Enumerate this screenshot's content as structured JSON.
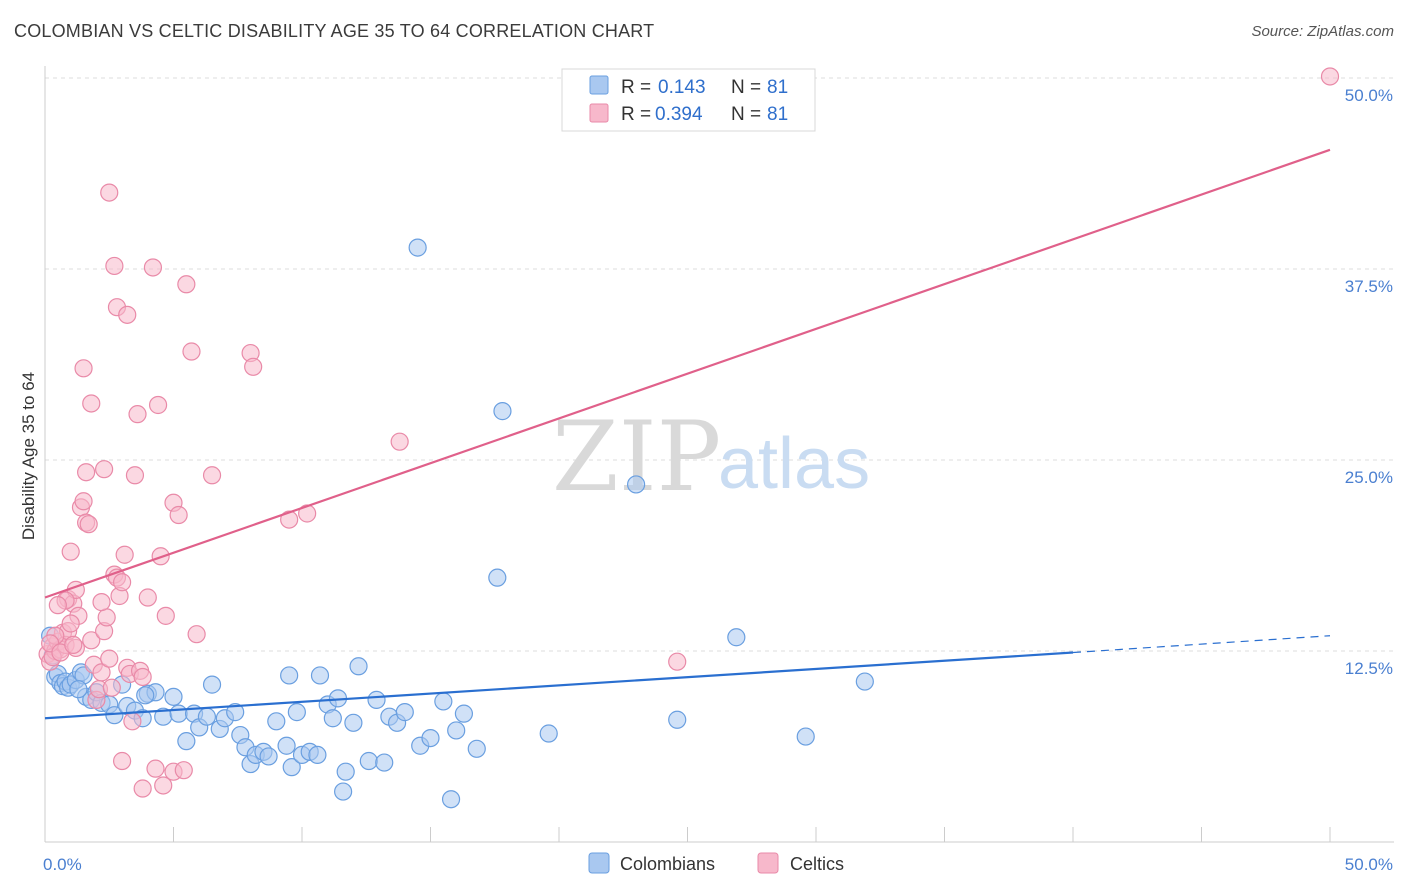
{
  "title": "COLOMBIAN VS CELTIC DISABILITY AGE 35 TO 64 CORRELATION CHART",
  "source": "Source: ZipAtlas.com",
  "watermark": {
    "zip": "ZIP",
    "atlas": "atlas"
  },
  "colors": {
    "colombians_fill": "#a9c8f0",
    "colombians_stroke": "#6a9fe0",
    "colombians_line": "#2a6fd0",
    "celtics_fill": "#f7b8cb",
    "celtics_stroke": "#e98aa8",
    "celtics_line": "#e0608a",
    "grid": "#dcdcdc",
    "tick_text": "#4a7fd0"
  },
  "legend": {
    "rows": [
      {
        "r_label": "R =",
        "r_value": "0.143",
        "n_label": "N =",
        "n_value": "81"
      },
      {
        "r_label": "R =",
        "r_value": "0.394",
        "n_label": "N =",
        "n_value": "81"
      }
    ]
  },
  "bottom_legend": {
    "items": [
      "Colombians",
      "Celtics"
    ]
  },
  "chart_data": {
    "type": "scatter",
    "xlabel": "",
    "ylabel": "Disability Age 35 to 64",
    "xlim": [
      0,
      50
    ],
    "ylim": [
      0,
      50
    ],
    "x_tick_labels": [
      "0.0%",
      "50.0%"
    ],
    "y_ticks": [
      12.5,
      25.0,
      37.5,
      50.0
    ],
    "y_tick_labels": [
      "12.5%",
      "25.0%",
      "37.5%",
      "50.0%"
    ],
    "grid": true,
    "legend_position": "top-center",
    "series": [
      {
        "name": "Colombians",
        "r": 0.143,
        "n": 81,
        "trend": {
          "x0": 0,
          "y0": 8.1,
          "x1": 40,
          "y1": 12.4,
          "dash_to": 50,
          "dash_y": 13.5
        },
        "points": [
          [
            0.2,
            13.5
          ],
          [
            0.3,
            12.2
          ],
          [
            0.4,
            10.8
          ],
          [
            0.5,
            11.0
          ],
          [
            0.6,
            10.4
          ],
          [
            0.7,
            10.2
          ],
          [
            0.8,
            10.5
          ],
          [
            0.9,
            10.1
          ],
          [
            1.0,
            10.3
          ],
          [
            1.2,
            10.6
          ],
          [
            1.4,
            11.1
          ],
          [
            1.5,
            10.9
          ],
          [
            1.6,
            9.5
          ],
          [
            1.8,
            9.3
          ],
          [
            2.0,
            9.8
          ],
          [
            2.2,
            9.1
          ],
          [
            2.5,
            9.0
          ],
          [
            2.7,
            8.3
          ],
          [
            3.0,
            10.3
          ],
          [
            3.2,
            8.9
          ],
          [
            3.5,
            8.6
          ],
          [
            3.8,
            8.1
          ],
          [
            4.0,
            9.7
          ],
          [
            4.3,
            9.8
          ],
          [
            4.6,
            8.2
          ],
          [
            5.0,
            9.5
          ],
          [
            5.2,
            8.4
          ],
          [
            5.5,
            6.6
          ],
          [
            5.8,
            8.4
          ],
          [
            6.0,
            7.5
          ],
          [
            6.3,
            8.2
          ],
          [
            6.5,
            10.3
          ],
          [
            6.8,
            7.4
          ],
          [
            7.0,
            8.1
          ],
          [
            7.4,
            8.5
          ],
          [
            7.6,
            7.0
          ],
          [
            7.8,
            6.2
          ],
          [
            8.0,
            5.1
          ],
          [
            8.2,
            5.7
          ],
          [
            8.5,
            5.9
          ],
          [
            8.7,
            5.6
          ],
          [
            9.0,
            7.9
          ],
          [
            9.4,
            6.3
          ],
          [
            9.6,
            4.9
          ],
          [
            9.8,
            8.5
          ],
          [
            10.0,
            5.7
          ],
          [
            10.3,
            5.9
          ],
          [
            10.6,
            5.7
          ],
          [
            11.0,
            9.0
          ],
          [
            11.2,
            8.1
          ],
          [
            11.4,
            9.4
          ],
          [
            11.7,
            4.6
          ],
          [
            12.0,
            7.8
          ],
          [
            12.2,
            11.5
          ],
          [
            12.6,
            5.3
          ],
          [
            12.9,
            9.3
          ],
          [
            13.2,
            5.2
          ],
          [
            13.4,
            8.2
          ],
          [
            13.7,
            7.8
          ],
          [
            14.0,
            8.5
          ],
          [
            14.6,
            6.3
          ],
          [
            15.0,
            6.8
          ],
          [
            15.5,
            9.2
          ],
          [
            16.0,
            7.3
          ],
          [
            16.3,
            8.4
          ],
          [
            16.8,
            6.1
          ],
          [
            11.6,
            3.3
          ],
          [
            15.8,
            2.8
          ],
          [
            9.5,
            10.9
          ],
          [
            10.7,
            10.9
          ],
          [
            19.6,
            7.1
          ],
          [
            24.6,
            8.0
          ],
          [
            26.9,
            13.4
          ],
          [
            29.6,
            6.9
          ],
          [
            31.9,
            10.5
          ],
          [
            17.6,
            17.3
          ],
          [
            23.0,
            23.4
          ],
          [
            17.8,
            28.2
          ],
          [
            14.5,
            38.9
          ],
          [
            3.9,
            9.6
          ],
          [
            1.3,
            10.0
          ]
        ]
      },
      {
        "name": "Celtics",
        "r": 0.394,
        "n": 81,
        "trend": {
          "x0": 0,
          "y0": 16.0,
          "x1": 50,
          "y1": 45.3
        },
        "points": [
          [
            0.1,
            12.3
          ],
          [
            0.2,
            11.8
          ],
          [
            0.3,
            12.8
          ],
          [
            0.4,
            12.5
          ],
          [
            0.5,
            13.1
          ],
          [
            0.6,
            12.6
          ],
          [
            0.7,
            13.7
          ],
          [
            0.8,
            12.9
          ],
          [
            0.9,
            15.9
          ],
          [
            1.0,
            19.0
          ],
          [
            1.1,
            15.6
          ],
          [
            1.2,
            16.5
          ],
          [
            1.3,
            14.8
          ],
          [
            1.4,
            21.9
          ],
          [
            1.5,
            22.3
          ],
          [
            1.6,
            20.9
          ],
          [
            1.7,
            20.8
          ],
          [
            1.8,
            13.2
          ],
          [
            1.9,
            11.6
          ],
          [
            2.0,
            9.3
          ],
          [
            2.1,
            10.0
          ],
          [
            2.2,
            11.1
          ],
          [
            2.3,
            13.8
          ],
          [
            2.4,
            14.7
          ],
          [
            2.5,
            12.0
          ],
          [
            2.6,
            10.1
          ],
          [
            2.7,
            17.5
          ],
          [
            2.8,
            17.3
          ],
          [
            2.9,
            16.1
          ],
          [
            3.0,
            17.0
          ],
          [
            3.1,
            18.8
          ],
          [
            3.2,
            11.4
          ],
          [
            3.3,
            11.0
          ],
          [
            3.4,
            7.9
          ],
          [
            3.5,
            24.0
          ],
          [
            3.6,
            28.0
          ],
          [
            3.7,
            11.2
          ],
          [
            3.8,
            10.8
          ],
          [
            2.5,
            42.5
          ],
          [
            2.7,
            37.7
          ],
          [
            2.8,
            35.0
          ],
          [
            3.2,
            34.5
          ],
          [
            4.0,
            16.0
          ],
          [
            4.2,
            37.6
          ],
          [
            4.4,
            28.6
          ],
          [
            4.5,
            18.7
          ],
          [
            4.7,
            14.8
          ],
          [
            5.0,
            22.2
          ],
          [
            5.2,
            21.4
          ],
          [
            5.5,
            36.5
          ],
          [
            5.7,
            32.1
          ],
          [
            5.9,
            13.6
          ],
          [
            6.5,
            24.0
          ],
          [
            8.0,
            32.0
          ],
          [
            8.1,
            31.1
          ],
          [
            9.5,
            21.1
          ],
          [
            10.2,
            21.5
          ],
          [
            13.8,
            26.2
          ],
          [
            1.6,
            24.2
          ],
          [
            1.5,
            31.0
          ],
          [
            2.3,
            24.4
          ],
          [
            1.8,
            28.7
          ],
          [
            0.8,
            15.8
          ],
          [
            0.5,
            15.5
          ],
          [
            0.9,
            13.8
          ],
          [
            1.2,
            12.7
          ],
          [
            0.4,
            13.5
          ],
          [
            0.3,
            12.1
          ],
          [
            0.2,
            13.0
          ],
          [
            1.0,
            14.3
          ],
          [
            2.2,
            15.7
          ],
          [
            3.0,
            5.3
          ],
          [
            3.8,
            3.5
          ],
          [
            4.3,
            4.8
          ],
          [
            4.6,
            3.7
          ],
          [
            5.0,
            4.6
          ],
          [
            5.4,
            4.7
          ],
          [
            24.6,
            11.8
          ],
          [
            50.0,
            50.1
          ],
          [
            0.6,
            12.4
          ],
          [
            1.1,
            12.9
          ]
        ]
      }
    ]
  }
}
